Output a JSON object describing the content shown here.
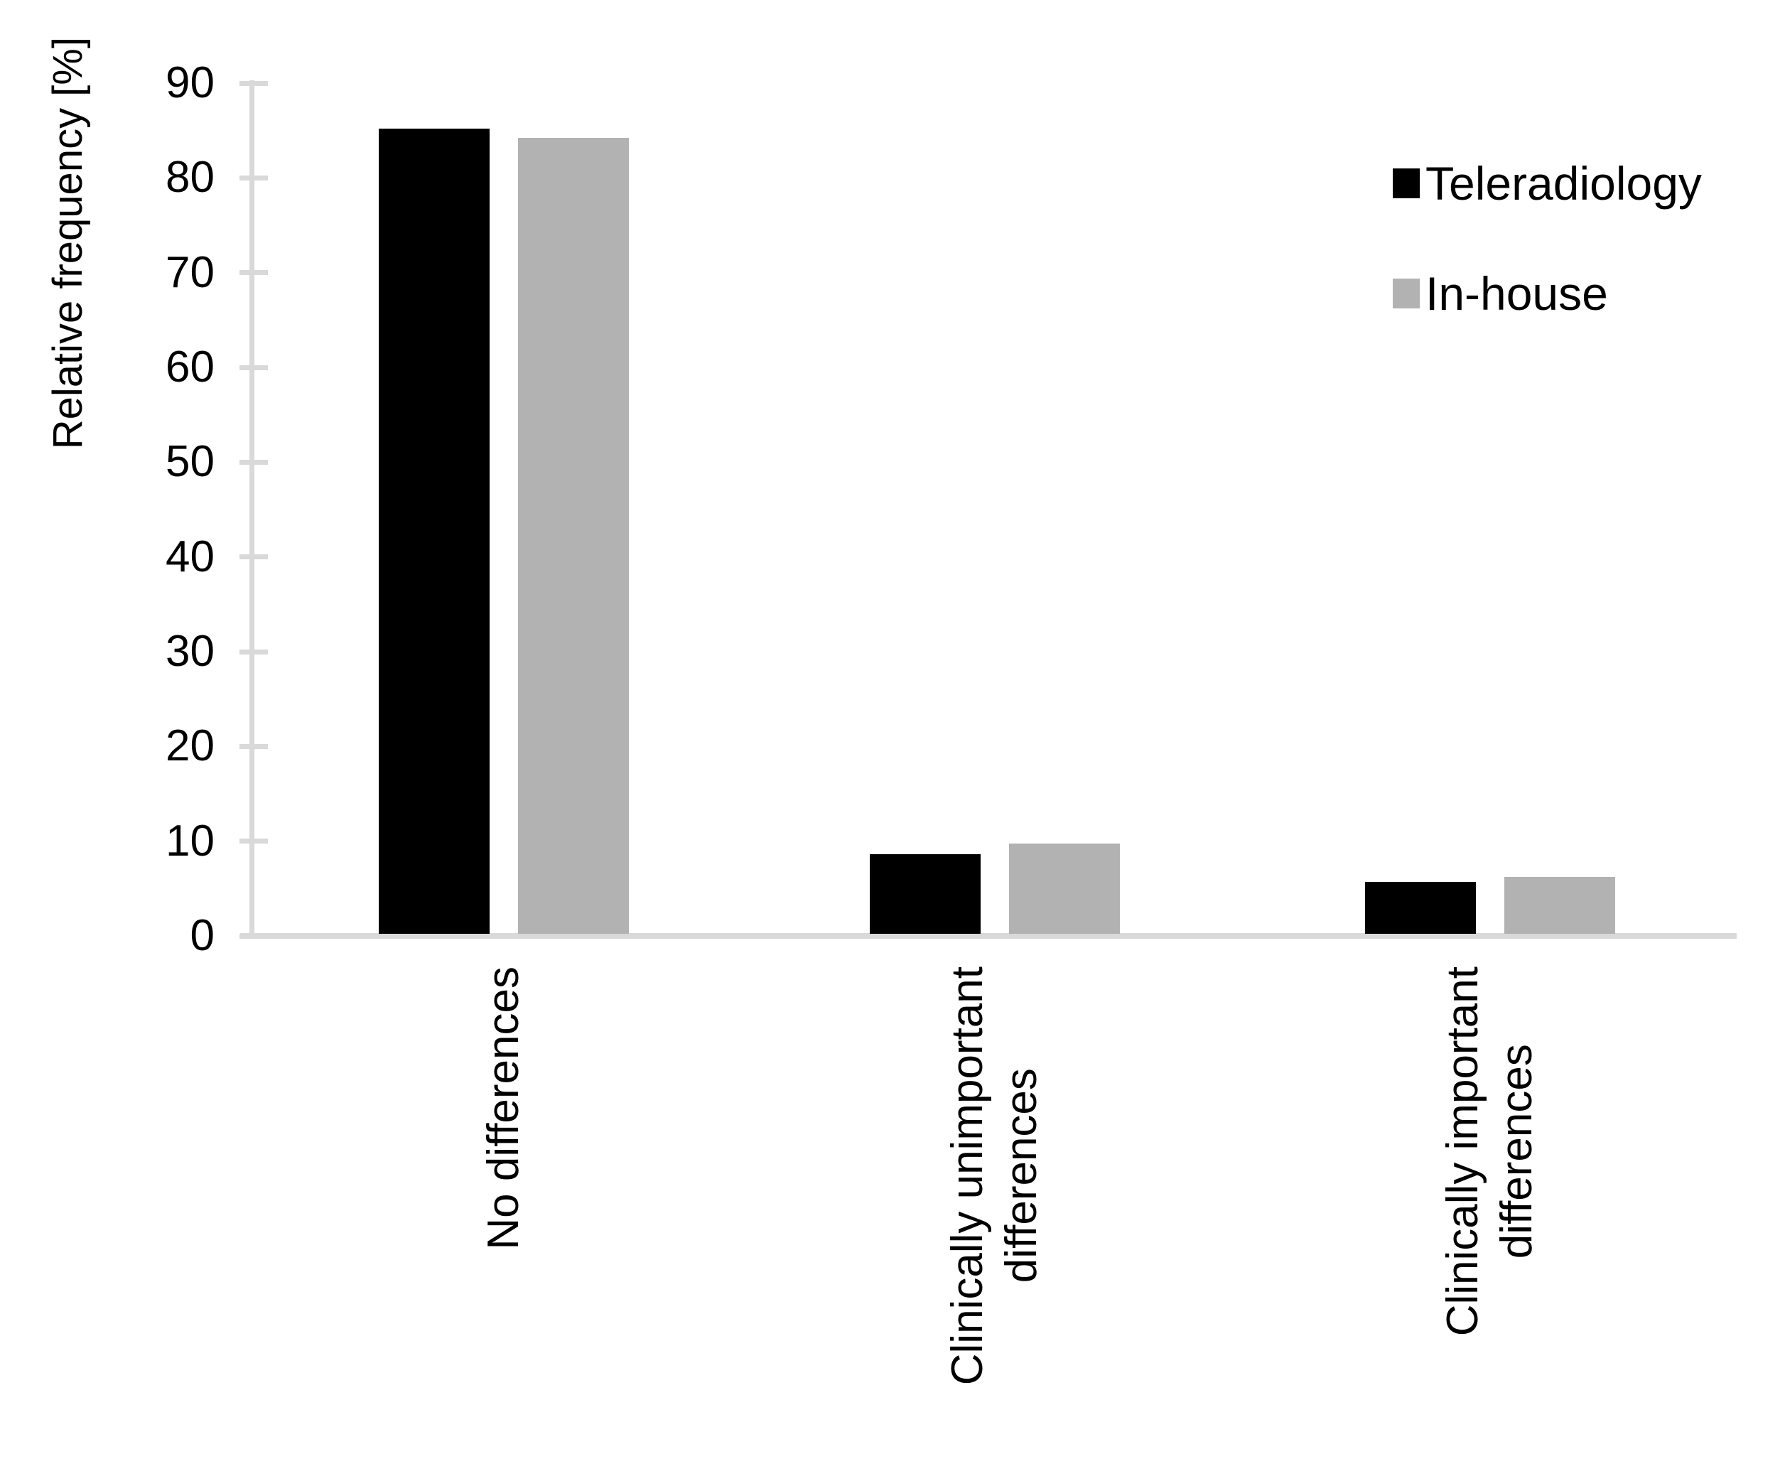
{
  "chart_data": {
    "type": "bar",
    "title": "",
    "ylabel": "Relative frequency [%]",
    "xlabel": "",
    "ylim": [
      0,
      90
    ],
    "ytick_step": 10,
    "yticks": [
      0,
      10,
      20,
      30,
      40,
      50,
      60,
      70,
      80,
      90
    ],
    "grid": false,
    "categories": [
      "No differences",
      "Clinically unimportant differences",
      "Clinically important differences"
    ],
    "category_lines": [
      [
        "No differences"
      ],
      [
        "Clinically unimportant",
        "differences"
      ],
      [
        "Clinically important",
        "differences"
      ]
    ],
    "series": [
      {
        "name": "Teleradiology",
        "color": "#000000",
        "values": [
          85,
          8.4,
          5.5
        ]
      },
      {
        "name": "In-house",
        "color": "#b2b2b2",
        "values": [
          84,
          9.5,
          6
        ]
      }
    ],
    "legend_position": "top-right",
    "axis_color": "#d9d9d9",
    "text_color": "#000000",
    "background_color": "#ffffff"
  }
}
